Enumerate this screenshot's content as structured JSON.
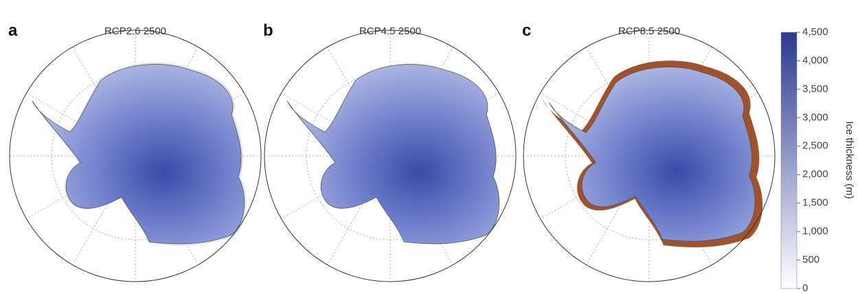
{
  "panels": [
    {
      "letter": "a",
      "title": "RCP2.6 2500"
    },
    {
      "letter": "b",
      "title": "RCP4.5 2500"
    },
    {
      "letter": "c",
      "title": "RCP8.5 2500"
    }
  ],
  "colorbar": {
    "label": "Ice thickness (m)",
    "lim": [
      0,
      4500
    ],
    "ticks": [
      0,
      500,
      {
        "value": 1000,
        "label": "1,000"
      },
      {
        "value": 1500,
        "label": "1,500"
      },
      {
        "value": 2000,
        "label": "2,000"
      },
      {
        "value": 2500,
        "label": "2,500"
      },
      {
        "value": 3000,
        "label": "3,000"
      },
      {
        "value": 3500,
        "label": "3,500"
      },
      {
        "value": 4000,
        "label": "4,000"
      },
      {
        "value": 4500,
        "label": "4,500"
      }
    ],
    "colors": [
      "#ffffff",
      "#2b3990"
    ]
  }
}
